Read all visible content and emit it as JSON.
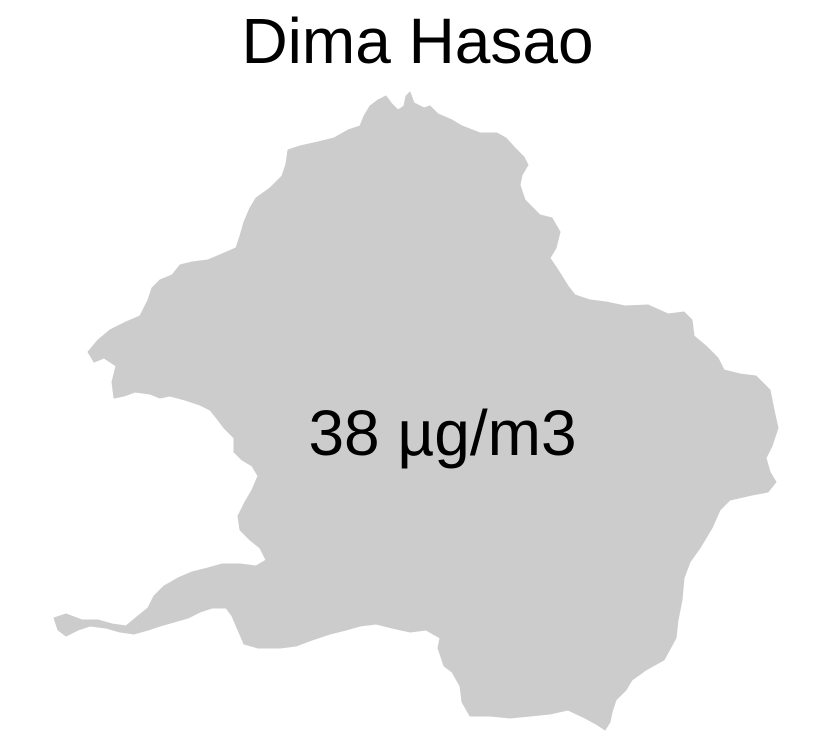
{
  "map": {
    "title": "Dima Hasao",
    "value_label": "38 µg/m3",
    "fill_color": "#cccccc",
    "background_color": "#ffffff"
  }
}
